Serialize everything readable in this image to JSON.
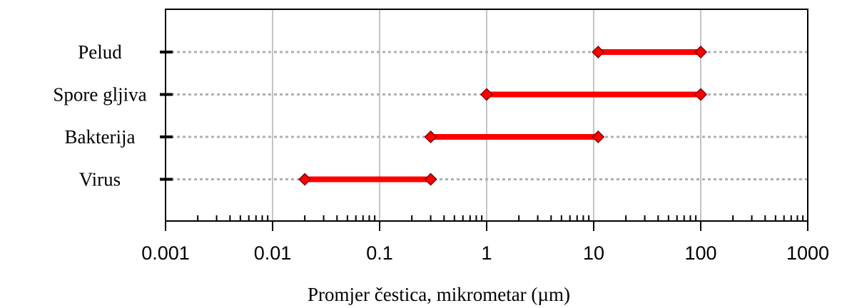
{
  "chart_data": {
    "type": "range-bar",
    "xscale": "log",
    "xlim": [
      0.001,
      1000
    ],
    "xlabel": "Promjer čestica, mikrometar (µm)",
    "ylabel": "",
    "title": "",
    "grid": {
      "vertical": true,
      "horizontal_dotted": true
    },
    "x_tick_labels": [
      "0.001",
      "0.01",
      "0.1",
      "1",
      "10",
      "100",
      "1000"
    ],
    "x_tick_values": [
      0.001,
      0.01,
      0.1,
      1,
      10,
      100,
      1000
    ],
    "categories": [
      "Pelud",
      "Spore gljiva",
      "Bakterija",
      "Virus"
    ],
    "ranges": [
      {
        "label": "Pelud",
        "min": 11,
        "max": 100
      },
      {
        "label": "Spore gljiva",
        "min": 1,
        "max": 100
      },
      {
        "label": "Bakterija",
        "min": 0.3,
        "max": 11
      },
      {
        "label": "Virus",
        "min": 0.02,
        "max": 0.3
      }
    ],
    "colors": {
      "range": "#ff0000",
      "marker_edge": "#800000",
      "grid": "#b0b0b0",
      "axis": "#000000"
    }
  }
}
